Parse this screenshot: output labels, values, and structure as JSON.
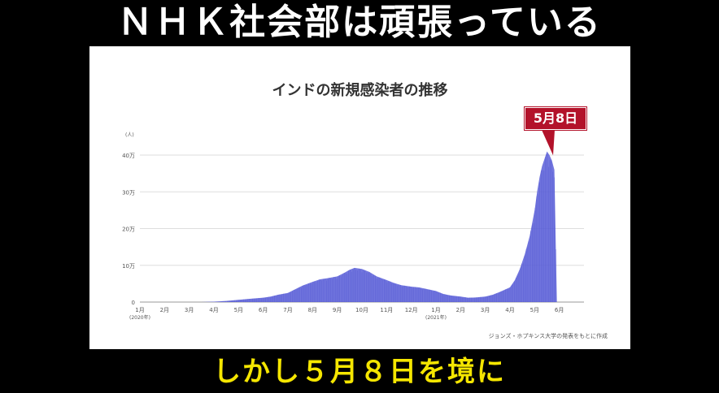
{
  "top_caption": "ＮＨＫ社会部は頑張っている",
  "bottom_caption": "しかし５月８日を境に",
  "chart_data": {
    "type": "bar",
    "title": "インドの新規感染者の推移",
    "unit_label": "(人)",
    "y_ticks": [
      "0",
      "10万",
      "20万",
      "30万",
      "40万"
    ],
    "ylim": [
      0,
      420000
    ],
    "x_ticks": [
      "1月",
      "2月",
      "3月",
      "4月",
      "5月",
      "6月",
      "7月",
      "8月",
      "9月",
      "10月",
      "11月",
      "12月",
      "1月",
      "2月",
      "3月",
      "4月",
      "5月",
      "6月"
    ],
    "x_year_labels": [
      "(2020年)",
      "(2021年)"
    ],
    "x_range_months": [
      0,
      18
    ],
    "series_color": "#5a5fd8",
    "callout_label": "5月8日",
    "source": "ジョンズ・ホプキンス大学の発表をもとに作成",
    "series": [
      {
        "x_month": [
          0,
          1,
          2,
          2.5,
          3,
          3.5,
          4,
          4.5,
          5,
          5.3,
          5.6,
          6,
          6.3,
          6.6,
          7,
          7.3,
          7.6,
          8,
          8.3,
          8.5,
          8.7,
          9,
          9.3,
          9.6,
          10,
          10.3,
          10.6,
          11,
          11.3,
          11.6,
          12,
          12.3,
          12.6,
          13,
          13.3,
          13.6,
          14,
          14.3,
          14.6,
          15,
          15.2,
          15.4,
          15.6,
          15.8,
          16,
          16.1,
          16.2,
          16.3,
          16.4,
          16.5,
          16.6,
          16.7,
          16.8,
          16.9
        ],
        "values": [
          0,
          0,
          0,
          100,
          1000,
          3000,
          6000,
          9000,
          12000,
          15000,
          20000,
          25000,
          35000,
          45000,
          55000,
          62000,
          65000,
          70000,
          80000,
          88000,
          93000,
          90000,
          82000,
          70000,
          60000,
          52000,
          46000,
          42000,
          40000,
          36000,
          30000,
          22000,
          18000,
          15000,
          12000,
          12500,
          15000,
          20000,
          28000,
          40000,
          60000,
          90000,
          130000,
          180000,
          250000,
          300000,
          340000,
          370000,
          390000,
          410000,
          400000,
          385000,
          360000,
          0
        ]
      }
    ]
  }
}
